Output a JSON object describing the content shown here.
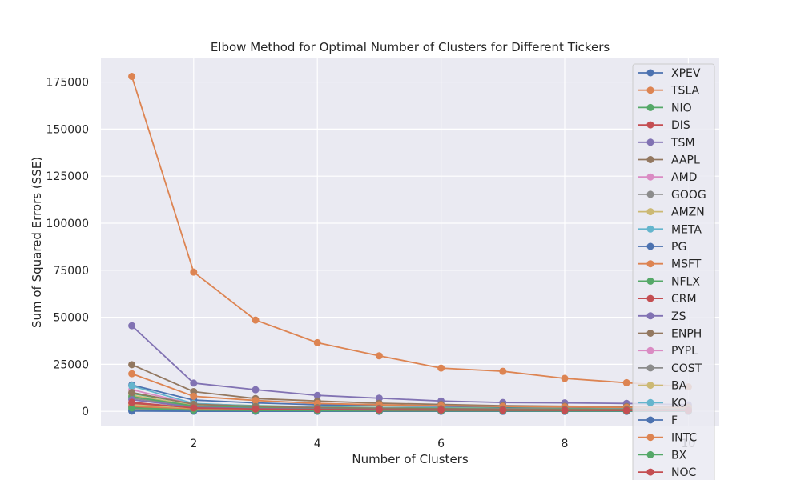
{
  "chart_data": {
    "type": "line",
    "title": "Elbow Method for Optimal Number of Clusters for Different Tickers",
    "xlabel": "Number of Clusters",
    "ylabel": "Sum of Squared Errors (SSE)",
    "xlim": [
      0.5,
      10.5
    ],
    "ylim": [
      -8000,
      188000
    ],
    "xticks": [
      2,
      4,
      6,
      8,
      10
    ],
    "yticks": [
      0,
      25000,
      50000,
      75000,
      100000,
      125000,
      150000,
      175000
    ],
    "ytick_labels": [
      "0",
      "25000",
      "50000",
      "75000",
      "100000",
      "125000",
      "150000",
      "175000"
    ],
    "grid": true,
    "legend_position": "top-right",
    "x": [
      1,
      2,
      3,
      4,
      5,
      6,
      7,
      8,
      9,
      10
    ],
    "series": [
      {
        "name": "XPEV",
        "color": "#4c72b0",
        "values": [
          14000,
          6000,
          4500,
          3500,
          3000,
          2700,
          2400,
          2200,
          2000,
          1800
        ]
      },
      {
        "name": "TSLA",
        "color": "#dd8452",
        "values": [
          178000,
          74000,
          48500,
          36500,
          29500,
          23000,
          21300,
          17500,
          15200,
          13000
        ]
      },
      {
        "name": "NIO",
        "color": "#55a868",
        "values": [
          9500,
          4000,
          3000,
          2400,
          2000,
          1800,
          1600,
          1450,
          1300,
          1200
        ]
      },
      {
        "name": "DIS",
        "color": "#c44e52",
        "values": [
          2500,
          900,
          600,
          450,
          380,
          330,
          290,
          260,
          240,
          220
        ]
      },
      {
        "name": "TSM",
        "color": "#8172b3",
        "values": [
          45500,
          15000,
          11500,
          8500,
          7000,
          5500,
          4700,
          4500,
          4200,
          3500
        ]
      },
      {
        "name": "AAPL",
        "color": "#937860",
        "values": [
          24800,
          10500,
          6800,
          5500,
          4300,
          3700,
          3000,
          2700,
          2500,
          2300
        ]
      },
      {
        "name": "AMD",
        "color": "#da8bc3",
        "values": [
          11500,
          3800,
          2600,
          2000,
          1700,
          1500,
          1300,
          1200,
          1100,
          1000
        ]
      },
      {
        "name": "GOOG",
        "color": "#8c8c8c",
        "values": [
          7000,
          2600,
          1800,
          1400,
          1200,
          1000,
          900,
          820,
          760,
          700
        ]
      },
      {
        "name": "AMZN",
        "color": "#ccb974",
        "values": [
          8500,
          3200,
          2200,
          1700,
          1400,
          1200,
          1050,
          950,
          870,
          800
        ]
      },
      {
        "name": "META",
        "color": "#64b5cd",
        "values": [
          13500,
          4200,
          2800,
          2200,
          1800,
          1550,
          1350,
          1200,
          1100,
          1000
        ]
      },
      {
        "name": "PG",
        "color": "#4c72b0",
        "values": [
          600,
          250,
          170,
          130,
          110,
          95,
          85,
          78,
          72,
          66
        ]
      },
      {
        "name": "MSFT",
        "color": "#dd8452",
        "values": [
          20000,
          8000,
          5800,
          4200,
          3500,
          3000,
          2600,
          2300,
          2100,
          1900
        ]
      },
      {
        "name": "NFLX",
        "color": "#55a868",
        "values": [
          7800,
          2900,
          2000,
          1550,
          1300,
          1100,
          980,
          880,
          800,
          740
        ]
      },
      {
        "name": "CRM",
        "color": "#c44e52",
        "values": [
          4200,
          1500,
          1050,
          820,
          690,
          600,
          530,
          480,
          440,
          400
        ]
      },
      {
        "name": "ZS",
        "color": "#8172b3",
        "values": [
          6200,
          2200,
          1500,
          1150,
          960,
          830,
          730,
          660,
          600,
          550
        ]
      },
      {
        "name": "ENPH",
        "color": "#937860",
        "values": [
          10000,
          3800,
          2600,
          2000,
          1650,
          1400,
          1250,
          1100,
          1000,
          920
        ]
      },
      {
        "name": "PYPL",
        "color": "#da8bc3",
        "values": [
          3000,
          1100,
          760,
          590,
          490,
          420,
          370,
          330,
          300,
          280
        ]
      },
      {
        "name": "COST",
        "color": "#8c8c8c",
        "values": [
          1200,
          480,
          330,
          250,
          210,
          180,
          160,
          145,
          130,
          120
        ]
      },
      {
        "name": "BA",
        "color": "#ccb974",
        "values": [
          3500,
          1300,
          900,
          700,
          580,
          500,
          440,
          400,
          360,
          330
        ]
      },
      {
        "name": "KO",
        "color": "#64b5cd",
        "values": [
          300,
          120,
          85,
          65,
          55,
          48,
          43,
          39,
          36,
          33
        ]
      },
      {
        "name": "F",
        "color": "#4c72b0",
        "values": [
          150,
          60,
          42,
          33,
          28,
          24,
          21,
          19,
          17,
          16
        ]
      },
      {
        "name": "INTC",
        "color": "#dd8452",
        "values": [
          2800,
          1000,
          700,
          540,
          450,
          390,
          340,
          310,
          280,
          260
        ]
      },
      {
        "name": "BX",
        "color": "#55a868",
        "values": [
          1800,
          700,
          480,
          370,
          310,
          270,
          240,
          215,
          195,
          180
        ]
      },
      {
        "name": "NOC",
        "color": "#c44e52",
        "values": [
          4800,
          1800,
          1250,
          960,
          800,
          690,
          610,
          550,
          500,
          460
        ]
      }
    ]
  }
}
